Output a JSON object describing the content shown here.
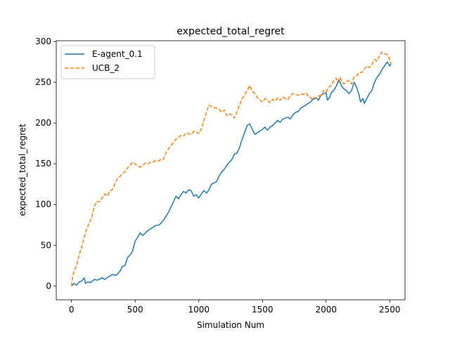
{
  "chart_data": {
    "type": "line",
    "title": "expected_total_regret",
    "xlabel": "Simulation Num",
    "ylabel": "expected_total_regret",
    "xlim": [
      -120,
      2620
    ],
    "ylim": [
      -17,
      301
    ],
    "xticks": [
      0,
      500,
      1000,
      1500,
      2000,
      2500
    ],
    "yticks": [
      0,
      50,
      100,
      150,
      200,
      250,
      300
    ],
    "grid": false,
    "legend_position": "top-left",
    "series": [
      {
        "name": "E-agent_0.1",
        "color": "#1f77b4",
        "style": "solid",
        "points": [
          [
            0,
            0
          ],
          [
            20,
            3
          ],
          [
            40,
            1
          ],
          [
            60,
            5
          ],
          [
            80,
            6
          ],
          [
            100,
            10
          ],
          [
            110,
            3
          ],
          [
            130,
            5
          ],
          [
            150,
            4
          ],
          [
            180,
            8
          ],
          [
            200,
            7
          ],
          [
            240,
            10
          ],
          [
            260,
            8
          ],
          [
            300,
            12
          ],
          [
            320,
            14
          ],
          [
            350,
            13
          ],
          [
            380,
            18
          ],
          [
            400,
            24
          ],
          [
            420,
            25
          ],
          [
            440,
            35
          ],
          [
            460,
            38
          ],
          [
            480,
            43
          ],
          [
            500,
            55
          ],
          [
            520,
            60
          ],
          [
            540,
            65
          ],
          [
            560,
            62
          ],
          [
            580,
            65
          ],
          [
            600,
            68
          ],
          [
            640,
            72
          ],
          [
            660,
            74
          ],
          [
            690,
            75
          ],
          [
            720,
            80
          ],
          [
            760,
            90
          ],
          [
            800,
            103
          ],
          [
            820,
            110
          ],
          [
            840,
            107
          ],
          [
            860,
            112
          ],
          [
            880,
            116
          ],
          [
            900,
            114
          ],
          [
            920,
            118
          ],
          [
            940,
            117
          ],
          [
            960,
            110
          ],
          [
            980,
            112
          ],
          [
            1000,
            108
          ],
          [
            1020,
            113
          ],
          [
            1040,
            117
          ],
          [
            1060,
            114
          ],
          [
            1080,
            118
          ],
          [
            1100,
            125
          ],
          [
            1140,
            128
          ],
          [
            1160,
            135
          ],
          [
            1180,
            140
          ],
          [
            1200,
            143
          ],
          [
            1220,
            148
          ],
          [
            1240,
            152
          ],
          [
            1260,
            155
          ],
          [
            1280,
            162
          ],
          [
            1300,
            163
          ],
          [
            1320,
            170
          ],
          [
            1340,
            180
          ],
          [
            1360,
            188
          ],
          [
            1380,
            197
          ],
          [
            1400,
            199
          ],
          [
            1420,
            192
          ],
          [
            1440,
            186
          ],
          [
            1460,
            188
          ],
          [
            1480,
            190
          ],
          [
            1500,
            192
          ],
          [
            1520,
            195
          ],
          [
            1540,
            191
          ],
          [
            1560,
            195
          ],
          [
            1580,
            197
          ],
          [
            1600,
            200
          ],
          [
            1620,
            203
          ],
          [
            1640,
            201
          ],
          [
            1660,
            205
          ],
          [
            1680,
            206
          ],
          [
            1700,
            207
          ],
          [
            1720,
            205
          ],
          [
            1740,
            210
          ],
          [
            1760,
            213
          ],
          [
            1780,
            214
          ],
          [
            1800,
            218
          ],
          [
            1820,
            220
          ],
          [
            1840,
            222
          ],
          [
            1860,
            224
          ],
          [
            1880,
            226
          ],
          [
            1900,
            230
          ],
          [
            1920,
            231
          ],
          [
            1940,
            228
          ],
          [
            1960,
            234
          ],
          [
            1980,
            236
          ],
          [
            2000,
            237
          ],
          [
            2010,
            228
          ],
          [
            2030,
            232
          ],
          [
            2040,
            237
          ],
          [
            2060,
            240
          ],
          [
            2080,
            245
          ],
          [
            2100,
            253
          ],
          [
            2110,
            250
          ],
          [
            2120,
            246
          ],
          [
            2140,
            242
          ],
          [
            2160,
            240
          ],
          [
            2180,
            236
          ],
          [
            2200,
            240
          ],
          [
            2220,
            250
          ],
          [
            2240,
            244
          ],
          [
            2260,
            234
          ],
          [
            2270,
            226
          ],
          [
            2290,
            230
          ],
          [
            2300,
            224
          ],
          [
            2320,
            230
          ],
          [
            2340,
            236
          ],
          [
            2360,
            240
          ],
          [
            2380,
            250
          ],
          [
            2400,
            256
          ],
          [
            2420,
            260
          ],
          [
            2440,
            266
          ],
          [
            2460,
            270
          ],
          [
            2480,
            275
          ],
          [
            2500,
            270
          ],
          [
            2510,
            272
          ]
        ]
      },
      {
        "name": "UCB_2",
        "color": "#ff7f0e",
        "style": "dashed",
        "points": [
          [
            0,
            0
          ],
          [
            10,
            12
          ],
          [
            20,
            18
          ],
          [
            40,
            26
          ],
          [
            60,
            38
          ],
          [
            80,
            48
          ],
          [
            100,
            60
          ],
          [
            120,
            70
          ],
          [
            140,
            78
          ],
          [
            160,
            84
          ],
          [
            170,
            92
          ],
          [
            180,
            98
          ],
          [
            200,
            104
          ],
          [
            220,
            103
          ],
          [
            240,
            108
          ],
          [
            260,
            113
          ],
          [
            280,
            110
          ],
          [
            300,
            116
          ],
          [
            320,
            118
          ],
          [
            340,
            125
          ],
          [
            360,
            132
          ],
          [
            380,
            134
          ],
          [
            400,
            138
          ],
          [
            420,
            140
          ],
          [
            440,
            145
          ],
          [
            460,
            148
          ],
          [
            480,
            152
          ],
          [
            500,
            150
          ],
          [
            520,
            147
          ],
          [
            540,
            146
          ],
          [
            560,
            148
          ],
          [
            580,
            151
          ],
          [
            600,
            150
          ],
          [
            620,
            152
          ],
          [
            640,
            152
          ],
          [
            660,
            154
          ],
          [
            680,
            153
          ],
          [
            700,
            155
          ],
          [
            720,
            155
          ],
          [
            740,
            163
          ],
          [
            760,
            168
          ],
          [
            780,
            172
          ],
          [
            800,
            176
          ],
          [
            820,
            180
          ],
          [
            840,
            182
          ],
          [
            860,
            185
          ],
          [
            880,
            184
          ],
          [
            900,
            188
          ],
          [
            920,
            187
          ],
          [
            940,
            186
          ],
          [
            960,
            190
          ],
          [
            980,
            189
          ],
          [
            1000,
            187
          ],
          [
            1020,
            193
          ],
          [
            1040,
            203
          ],
          [
            1060,
            213
          ],
          [
            1080,
            222
          ],
          [
            1100,
            220
          ],
          [
            1120,
            219
          ],
          [
            1140,
            218
          ],
          [
            1160,
            217
          ],
          [
            1180,
            213
          ],
          [
            1200,
            216
          ],
          [
            1220,
            209
          ],
          [
            1240,
            211
          ],
          [
            1260,
            210
          ],
          [
            1280,
            206
          ],
          [
            1300,
            214
          ],
          [
            1320,
            222
          ],
          [
            1340,
            230
          ],
          [
            1360,
            234
          ],
          [
            1380,
            240
          ],
          [
            1400,
            246
          ],
          [
            1410,
            242
          ],
          [
            1420,
            239
          ],
          [
            1440,
            236
          ],
          [
            1460,
            231
          ],
          [
            1480,
            228
          ],
          [
            1500,
            226
          ],
          [
            1520,
            230
          ],
          [
            1540,
            228
          ],
          [
            1560,
            225
          ],
          [
            1580,
            229
          ],
          [
            1600,
            227
          ],
          [
            1620,
            231
          ],
          [
            1640,
            228
          ],
          [
            1660,
            232
          ],
          [
            1680,
            230
          ],
          [
            1700,
            229
          ],
          [
            1720,
            234
          ],
          [
            1740,
            236
          ],
          [
            1760,
            235
          ],
          [
            1780,
            234
          ],
          [
            1800,
            236
          ],
          [
            1820,
            235
          ],
          [
            1840,
            237
          ],
          [
            1860,
            233
          ],
          [
            1880,
            231
          ],
          [
            1900,
            228
          ],
          [
            1920,
            231
          ],
          [
            1940,
            233
          ],
          [
            1960,
            234
          ],
          [
            1980,
            240
          ],
          [
            2000,
            238
          ],
          [
            2020,
            244
          ],
          [
            2040,
            246
          ],
          [
            2060,
            252
          ],
          [
            2080,
            255
          ],
          [
            2100,
            250
          ],
          [
            2110,
            256
          ],
          [
            2120,
            252
          ],
          [
            2140,
            248
          ],
          [
            2160,
            251
          ],
          [
            2180,
            252
          ],
          [
            2200,
            248
          ],
          [
            2220,
            257
          ],
          [
            2240,
            258
          ],
          [
            2260,
            262
          ],
          [
            2280,
            262
          ],
          [
            2300,
            266
          ],
          [
            2320,
            270
          ],
          [
            2340,
            268
          ],
          [
            2360,
            272
          ],
          [
            2380,
            278
          ],
          [
            2400,
            276
          ],
          [
            2420,
            283
          ],
          [
            2440,
            287
          ],
          [
            2460,
            285
          ],
          [
            2480,
            284
          ],
          [
            2500,
            278
          ],
          [
            2510,
            272
          ]
        ]
      }
    ]
  }
}
